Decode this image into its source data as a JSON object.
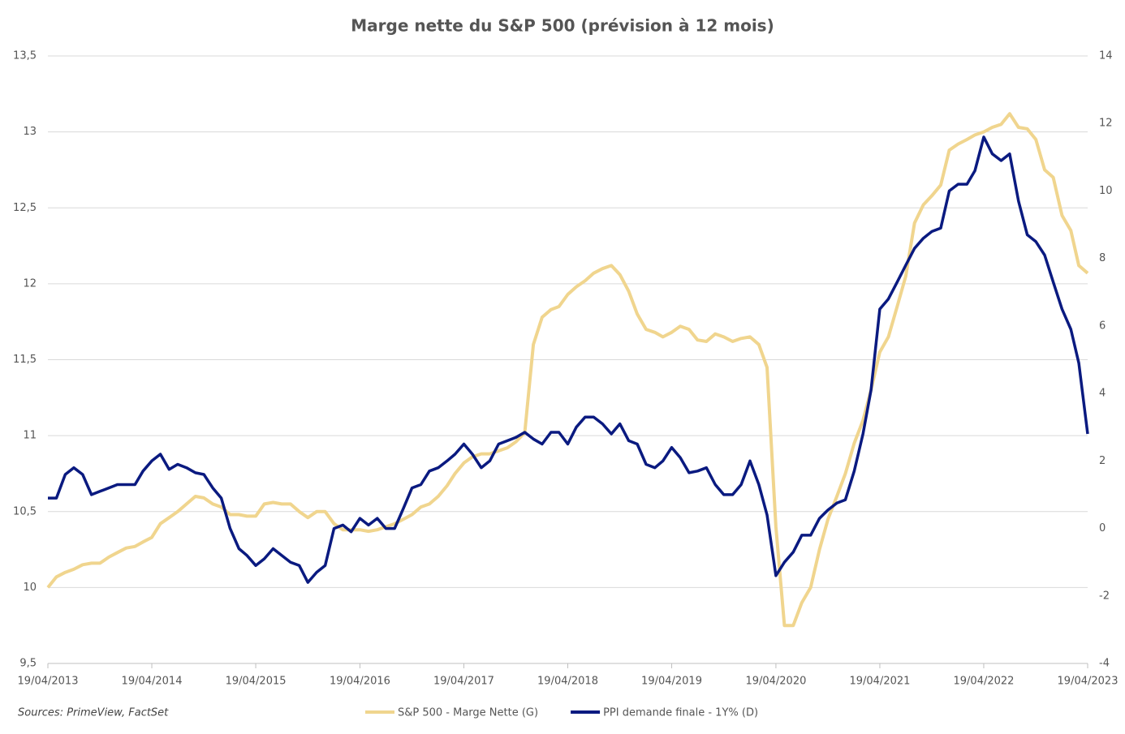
{
  "chart_data": {
    "type": "line",
    "title": "Marge nette du S&P 500 (prévision à 12 mois)",
    "source": "Sources: PrimeView, FactSet",
    "x": [
      "2013-04-19",
      "2013-05-19",
      "2013-06-19",
      "2013-07-19",
      "2013-08-19",
      "2013-09-19",
      "2013-10-19",
      "2013-11-19",
      "2013-12-19",
      "2014-01-19",
      "2014-02-19",
      "2014-03-19",
      "2014-04-19",
      "2014-05-19",
      "2014-06-19",
      "2014-07-19",
      "2014-08-19",
      "2014-09-19",
      "2014-10-19",
      "2014-11-19",
      "2014-12-19",
      "2015-01-19",
      "2015-02-19",
      "2015-03-19",
      "2015-04-19",
      "2015-05-19",
      "2015-06-19",
      "2015-07-19",
      "2015-08-19",
      "2015-09-19",
      "2015-10-19",
      "2015-11-19",
      "2015-12-19",
      "2016-01-19",
      "2016-02-19",
      "2016-03-19",
      "2016-04-19",
      "2016-05-19",
      "2016-06-19",
      "2016-07-19",
      "2016-08-19",
      "2016-09-19",
      "2016-10-19",
      "2016-11-19",
      "2016-12-19",
      "2017-01-19",
      "2017-02-19",
      "2017-03-19",
      "2017-04-19",
      "2017-05-19",
      "2017-06-19",
      "2017-07-19",
      "2017-08-19",
      "2017-09-19",
      "2017-10-19",
      "2017-11-19",
      "2017-12-19",
      "2018-01-19",
      "2018-02-19",
      "2018-03-19",
      "2018-04-19",
      "2018-05-19",
      "2018-06-19",
      "2018-07-19",
      "2018-08-19",
      "2018-09-19",
      "2018-10-19",
      "2018-11-19",
      "2018-12-19",
      "2019-01-19",
      "2019-02-19",
      "2019-03-19",
      "2019-04-19",
      "2019-05-19",
      "2019-06-19",
      "2019-07-19",
      "2019-08-19",
      "2019-09-19",
      "2019-10-19",
      "2019-11-19",
      "2019-12-19",
      "2020-01-19",
      "2020-02-19",
      "2020-03-19",
      "2020-04-19",
      "2020-05-19",
      "2020-06-19",
      "2020-07-19",
      "2020-08-19",
      "2020-09-19",
      "2020-10-19",
      "2020-11-19",
      "2020-12-19",
      "2021-01-19",
      "2021-02-19",
      "2021-03-19",
      "2021-04-19",
      "2021-05-19",
      "2021-06-19",
      "2021-07-19",
      "2021-08-19",
      "2021-09-19",
      "2021-10-19",
      "2021-11-19",
      "2021-12-19",
      "2022-01-19",
      "2022-02-19",
      "2022-03-19",
      "2022-04-19",
      "2022-05-19",
      "2022-06-19",
      "2022-07-19",
      "2022-08-19",
      "2022-09-19",
      "2022-10-19",
      "2022-11-19",
      "2022-12-19",
      "2023-01-19",
      "2023-02-19",
      "2023-03-19",
      "2023-04-19"
    ],
    "series": [
      {
        "name": "S&P 500 - Marge Nette (G)",
        "color": "#f0d58e",
        "axis": "y",
        "values": [
          10.0,
          10.07,
          10.1,
          10.12,
          10.15,
          10.16,
          10.16,
          10.2,
          10.23,
          10.26,
          10.27,
          10.3,
          10.33,
          10.42,
          10.46,
          10.5,
          10.55,
          10.6,
          10.59,
          10.55,
          10.53,
          10.48,
          10.48,
          10.47,
          10.47,
          10.55,
          10.56,
          10.55,
          10.55,
          10.5,
          10.46,
          10.5,
          10.5,
          10.42,
          10.38,
          10.38,
          10.38,
          10.37,
          10.38,
          10.4,
          10.42,
          10.45,
          10.48,
          10.53,
          10.55,
          10.6,
          10.67,
          10.75,
          10.82,
          10.86,
          10.88,
          10.88,
          10.9,
          10.92,
          10.96,
          11.02,
          11.6,
          11.78,
          11.83,
          11.85,
          11.93,
          11.98,
          12.02,
          12.07,
          12.1,
          12.12,
          12.06,
          11.95,
          11.8,
          11.7,
          11.68,
          11.65,
          11.68,
          11.72,
          11.7,
          11.63,
          11.62,
          11.67,
          11.65,
          11.62,
          11.64,
          11.65,
          11.6,
          11.45,
          10.4,
          9.75,
          9.75,
          9.9,
          10.0,
          10.25,
          10.45,
          10.6,
          10.75,
          10.95,
          11.1,
          11.3,
          11.55,
          11.65,
          11.85,
          12.05,
          12.4,
          12.52,
          12.58,
          12.65,
          12.88,
          12.92,
          12.95,
          12.98,
          13.0,
          13.03,
          13.05,
          13.12,
          13.03,
          13.02,
          12.95,
          12.75,
          12.7,
          12.45,
          12.35,
          12.12,
          12.07
        ]
      },
      {
        "name": "PPI demande finale - 1Y% (D)",
        "color": "#0a1a80",
        "axis": "y2",
        "values": [
          0.9,
          0.9,
          1.6,
          1.8,
          1.6,
          1.0,
          1.1,
          1.2,
          1.3,
          1.3,
          1.3,
          1.7,
          2.0,
          2.2,
          1.75,
          1.9,
          1.8,
          1.65,
          1.6,
          1.2,
          0.9,
          0.0,
          -0.6,
          -0.8,
          -1.1,
          -0.9,
          -0.6,
          -0.8,
          -1.0,
          -1.1,
          -1.6,
          -1.3,
          -1.1,
          0.0,
          0.1,
          -0.1,
          0.3,
          0.1,
          0.3,
          0.0,
          0.0,
          0.6,
          1.2,
          1.3,
          1.7,
          1.8,
          2.0,
          2.2,
          2.5,
          2.2,
          1.8,
          2.0,
          2.5,
          2.6,
          2.7,
          2.85,
          2.65,
          2.5,
          2.85,
          2.85,
          2.5,
          3.0,
          3.3,
          3.3,
          3.1,
          2.8,
          3.1,
          2.6,
          2.5,
          1.9,
          1.8,
          2.0,
          2.4,
          2.1,
          1.65,
          1.7,
          1.8,
          1.3,
          1.0,
          1.0,
          1.3,
          2.0,
          1.3,
          0.4,
          -1.4,
          -1.0,
          -0.7,
          -0.2,
          -0.2,
          0.3,
          0.55,
          0.75,
          0.85,
          1.7,
          2.8,
          4.1,
          6.5,
          6.8,
          7.3,
          7.8,
          8.3,
          8.6,
          8.8,
          8.9,
          10.0,
          10.2,
          10.2,
          10.6,
          11.6,
          11.1,
          10.9,
          11.1,
          9.7,
          8.7,
          8.5,
          8.1,
          7.3,
          6.5,
          5.9,
          4.9,
          2.8
        ]
      }
    ],
    "xlim": [
      "2013-04-19",
      "2023-04-19"
    ],
    "xticks": [
      {
        "value": "2013-04-19",
        "label": "19/04/2013"
      },
      {
        "value": "2014-04-19",
        "label": "19/04/2014"
      },
      {
        "value": "2015-04-19",
        "label": "19/04/2015"
      },
      {
        "value": "2016-04-19",
        "label": "19/04/2016"
      },
      {
        "value": "2017-04-19",
        "label": "19/04/2017"
      },
      {
        "value": "2018-04-19",
        "label": "19/04/2018"
      },
      {
        "value": "2019-04-19",
        "label": "19/04/2019"
      },
      {
        "value": "2020-04-19",
        "label": "19/04/2020"
      },
      {
        "value": "2021-04-19",
        "label": "19/04/2021"
      },
      {
        "value": "2022-04-19",
        "label": "19/04/2022"
      },
      {
        "value": "2023-04-19",
        "label": "19/04/2023"
      }
    ],
    "ylim": [
      9.5,
      13.5
    ],
    "yticks": [
      {
        "value": 9.5,
        "label": "9,5"
      },
      10,
      {
        "value": 10.5,
        "label": "10,5"
      },
      11,
      {
        "value": 11.5,
        "label": "11,5"
      },
      12,
      {
        "value": 12.5,
        "label": "12,5"
      },
      13,
      {
        "value": 13.5,
        "label": "13,5"
      }
    ],
    "y2lim": [
      -4,
      14
    ],
    "y2ticks": [
      -4,
      -2,
      0,
      2,
      4,
      6,
      8,
      10,
      12,
      14
    ],
    "grid": true,
    "legend": "bottom"
  }
}
